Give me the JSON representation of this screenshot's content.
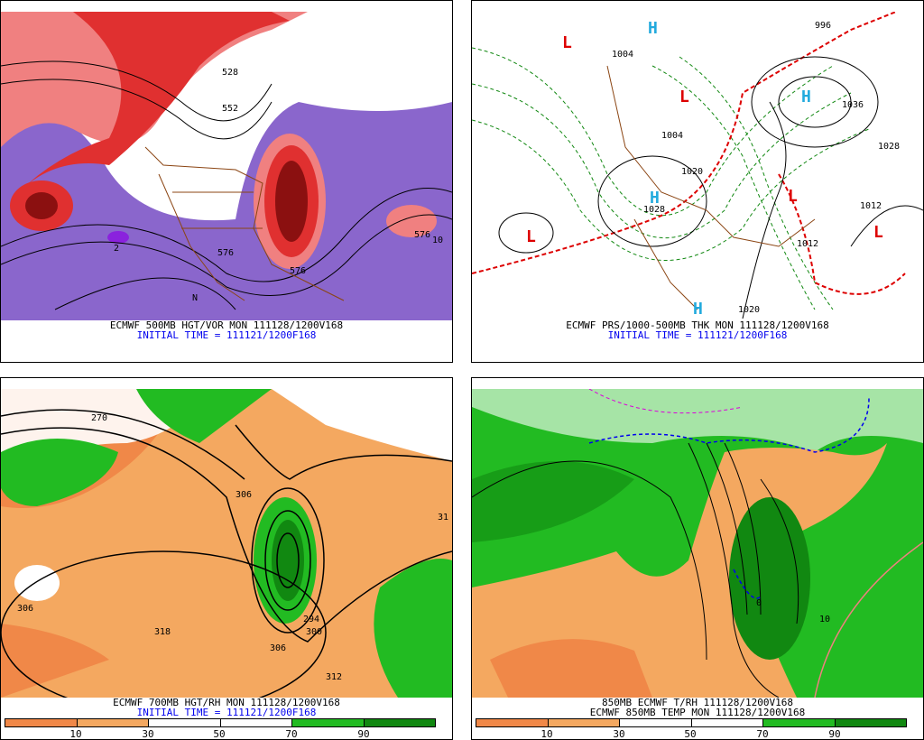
{
  "panels": [
    {
      "caption": "ECMWF 500MB HGT/VOR MON 111128/1200V168",
      "subcaption": "INITIAL TIME = 111121/1200F168",
      "labels": [
        "576",
        "528",
        "552",
        "576",
        "10",
        "2",
        "N",
        "576"
      ]
    },
    {
      "caption": "ECMWF PRS/1000-500MB THK MON 111128/1200V168",
      "subcaption": "INITIAL TIME = 111121/1200F168",
      "labels": [
        "996",
        "1004",
        "1020",
        "1028",
        "1012",
        "1012",
        "1020",
        "1028",
        "1036",
        "1004"
      ],
      "markers": [
        "L",
        "H",
        "L",
        "H",
        "L",
        "H",
        "L",
        "H",
        "L"
      ]
    },
    {
      "caption": "ECMWF 700MB HGT/RH MON 111128/1200V168",
      "subcaption": "INITIAL TIME = 111121/1200F168",
      "labels": [
        "270",
        "306",
        "318",
        "294",
        "300",
        "306",
        "312",
        "31",
        "306"
      ],
      "colorbar_ticks": [
        "10",
        "30",
        "50",
        "70",
        "90"
      ]
    },
    {
      "caption": "850MB ECMWF T/RH 111128/1200V168",
      "subcaption": "ECMWF 850MB TEMP MON 111128/1200V168",
      "labels": [
        "10",
        "0"
      ],
      "colorbar_ticks": [
        "10",
        "30",
        "50",
        "70",
        "90"
      ]
    }
  ],
  "colors": {
    "vor_red": "#e03030",
    "vor_dark": "#8b1010",
    "vor_pink": "#f08080",
    "vor_purple": "#8a66cc",
    "rh_orange_dark": "#f08848",
    "rh_orange": "#f4a860",
    "rh_green": "#22bb22",
    "rh_dark_green": "#118811",
    "caption_blue": "#0000ee",
    "border_brown": "#8b4513"
  }
}
